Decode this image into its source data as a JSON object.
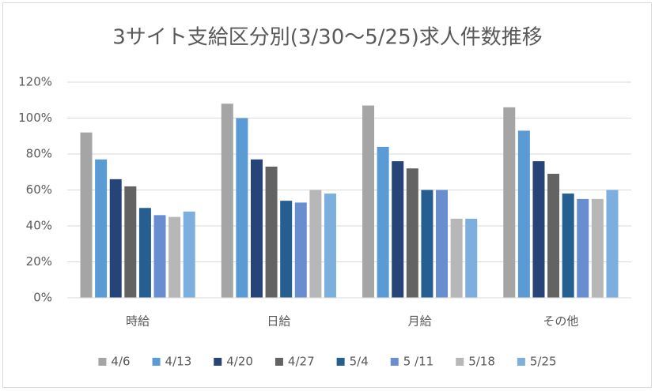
{
  "chart_data": {
    "type": "bar",
    "title": "3サイト支給区分別(3/30〜5/25)求人件数推移",
    "categories": [
      "時給",
      "日給",
      "月給",
      "その他"
    ],
    "series": [
      {
        "name": "4/6",
        "color": "#a5a5a5",
        "values": [
          92,
          108,
          107,
          106
        ]
      },
      {
        "name": "4/13",
        "color": "#5b9bd5",
        "values": [
          77,
          100,
          84,
          93
        ]
      },
      {
        "name": "4/20",
        "color": "#264478",
        "values": [
          66,
          77,
          76,
          76
        ]
      },
      {
        "name": "4/27",
        "color": "#636363",
        "values": [
          62,
          73,
          72,
          69
        ]
      },
      {
        "name": "5/4",
        "color": "#255e91",
        "values": [
          50,
          54,
          60,
          58
        ]
      },
      {
        "name": "5 /11",
        "color": "#698ed0",
        "values": [
          46,
          53,
          60,
          55
        ]
      },
      {
        "name": "5/18",
        "color": "#b7b7b7",
        "values": [
          45,
          60,
          44,
          55
        ]
      },
      {
        "name": "5/25",
        "color": "#7cafdd",
        "values": [
          48,
          58,
          44,
          60
        ]
      }
    ],
    "ylim": [
      0,
      120
    ],
    "yticks": [
      {
        "value": 0,
        "label": "0%"
      },
      {
        "value": 20,
        "label": "20%"
      },
      {
        "value": 40,
        "label": "40%"
      },
      {
        "value": 60,
        "label": "60%"
      },
      {
        "value": 80,
        "label": "80%"
      },
      {
        "value": 100,
        "label": "100%"
      },
      {
        "value": 120,
        "label": "120%"
      }
    ],
    "grid": true,
    "legend": "bottom"
  }
}
